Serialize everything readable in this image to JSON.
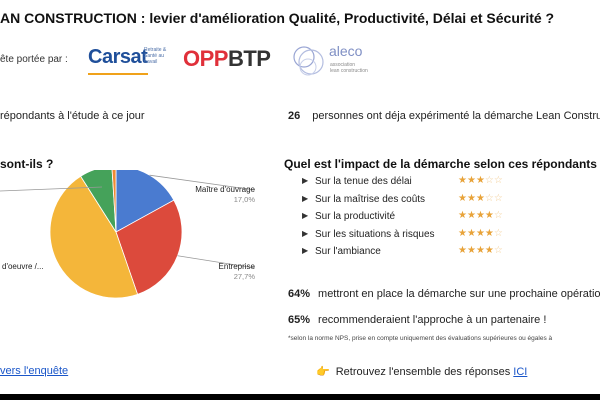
{
  "header": {
    "title": "AN CONSTRUCTION : levier d'amélioration Qualité, Productivité, Délai et Sécurité ?",
    "sponsor_label": "ête portée par :"
  },
  "logos": {
    "carsat": {
      "word": "Carsat",
      "small": "Retraite & Santé au travail",
      "color": "#1f4f9a",
      "accent": "#f0a21a"
    },
    "oppbtp": {
      "part1": "OPP",
      "part2": "BTP",
      "color1": "#e0303a",
      "color2": "#333333"
    },
    "aleco": {
      "word": "aleco",
      "sub1": "association",
      "sub2": "lean construction",
      "color": "#7f8fc4"
    }
  },
  "stats": {
    "left_text": "répondants à l'étude à ce jour",
    "right_number": "26",
    "right_text": "personnes ont déja expérimenté la démarche Lean Constru"
  },
  "left_section": {
    "question": "sont-ils ?"
  },
  "chart_data": {
    "type": "pie",
    "slices": [
      {
        "label": "Maître d'ouvrage",
        "value": 17.0,
        "display": "17,0%",
        "color": "#4a7bd0"
      },
      {
        "label": "Entreprise",
        "value": 27.7,
        "display": "27,7%",
        "color": "#dc4a3c"
      },
      {
        "label": "d'oeuvre /...",
        "value": 46.3,
        "display": "",
        "color": "#f4b63a"
      },
      {
        "label": "",
        "value": 8.0,
        "display": "",
        "color": "#45a25a"
      },
      {
        "label": "",
        "value": 1.0,
        "display": "",
        "color": "#f08a34"
      }
    ]
  },
  "right_section": {
    "question": "Quel est l'impact de la démarche selon ces répondants ?",
    "arrow_glyph": "▶",
    "impacts": [
      {
        "label": "Sur la tenue des délai",
        "rating": 3
      },
      {
        "label": "Sur la maîtrise des coûts",
        "rating": 3
      },
      {
        "label": "Sur la productivité",
        "rating": 4
      },
      {
        "label": "Sur les situations à risques",
        "rating": 4
      },
      {
        "label": "Sur l'ambiance",
        "rating": 4
      }
    ],
    "max_rating": 5
  },
  "results": [
    {
      "pct": "64%",
      "text": "mettront en place la démarche sur une prochaine opératio"
    },
    {
      "pct": "65%",
      "text": "recommenderaient l'approche à un partenaire !"
    }
  ],
  "footnote": "*selon la norme NPS, prise en compte uniquement des évaluations supérieures ou égales à",
  "footer": {
    "left_link": "vers l'enquête",
    "hand_glyph": "👉",
    "right_text": "Retrouvez l'ensemble des réponses ",
    "right_link": "ICI"
  }
}
